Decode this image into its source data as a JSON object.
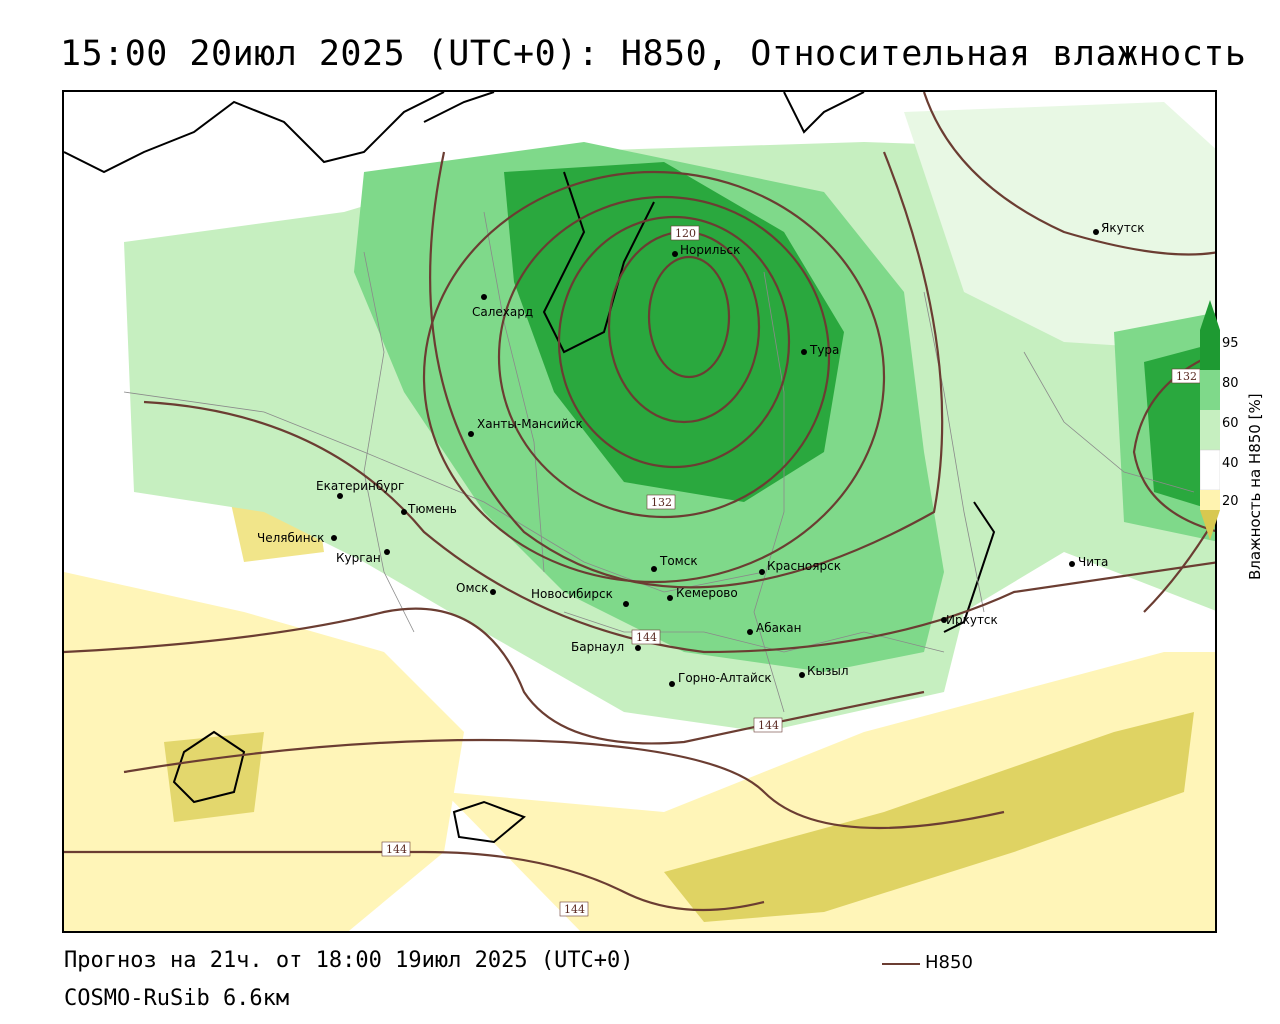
{
  "header": {
    "title": "15:00 20июл 2025 (UTC+0): H850, Относительная влажность"
  },
  "footer": {
    "forecast": "Прогноз на 21ч. от 18:00 19июл 2025 (UTC+0)",
    "model": "COSMO-RuSib 6.6км",
    "legend_label": "H850"
  },
  "colorbar": {
    "title": "Влажность на H850 [%]",
    "ticks": [
      "95",
      "80",
      "60",
      "40",
      "20"
    ],
    "colors": {
      "high": "#1e9a32",
      "mid": "#6fd07a",
      "low": "#b8ecb2",
      "neutral": "#ffffff",
      "dry": "#fff3b0",
      "very_dry": "#d8c850"
    }
  },
  "map": {
    "cities": [
      {
        "name": "Якутск"
      },
      {
        "name": "Норильск"
      },
      {
        "name": "Салехард"
      },
      {
        "name": "Тура"
      },
      {
        "name": "Ханты-Мансийск"
      },
      {
        "name": "Екатеринбург"
      },
      {
        "name": "Тюмень"
      },
      {
        "name": "Челябинск"
      },
      {
        "name": "Курган"
      },
      {
        "name": "Омск"
      },
      {
        "name": "Новосибирск"
      },
      {
        "name": "Томск"
      },
      {
        "name": "Кемерово"
      },
      {
        "name": "Красноярск"
      },
      {
        "name": "Иркутск"
      },
      {
        "name": "Чита"
      },
      {
        "name": "Абакан"
      },
      {
        "name": "Барнаул"
      },
      {
        "name": "Кызыл"
      },
      {
        "name": "Горно-Алтайск"
      }
    ],
    "contour_labels": [
      "120",
      "132",
      "132",
      "144",
      "144",
      "144",
      "144"
    ]
  }
}
